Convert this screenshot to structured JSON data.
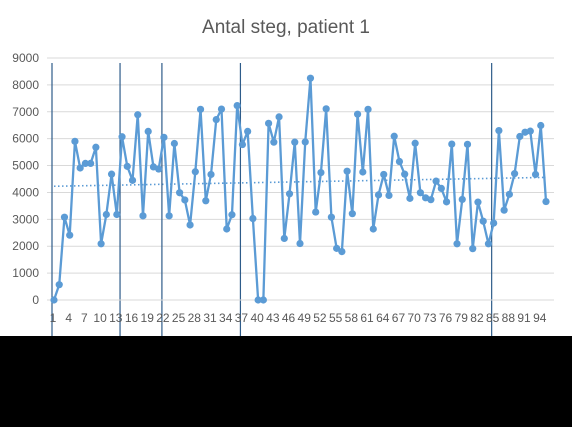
{
  "chart_data": {
    "type": "line",
    "title": "Antal steg, patient 1",
    "xlabel": "",
    "ylabel": "",
    "ylim": [
      0,
      9000
    ],
    "yticks": [
      0,
      1000,
      2000,
      3000,
      4000,
      5000,
      6000,
      7000,
      8000,
      9000
    ],
    "xtick_labels": [
      "1",
      "4",
      "7",
      "10",
      "13",
      "16",
      "19",
      "22",
      "25",
      "28",
      "31",
      "34",
      "37",
      "40",
      "43",
      "46",
      "49",
      "52",
      "55",
      "58",
      "61",
      "64",
      "67",
      "70",
      "73",
      "76",
      "79",
      "82",
      "85",
      "88",
      "91",
      "94"
    ],
    "grid": "horizontal",
    "legend": "none",
    "series_color": "#5B9BD5",
    "trendline": {
      "type": "linear",
      "start": 4230,
      "end": 4560,
      "style": "dotted"
    },
    "vertical_markers_at_day": [
      1,
      14,
      22,
      37,
      85
    ],
    "series": [
      {
        "values": [
          0,
          570,
          3080,
          2410,
          5900,
          4910,
          5080,
          5080,
          5680,
          2090,
          3180,
          4680,
          3180,
          6070,
          4970,
          4450,
          6890,
          3130,
          6270,
          4950,
          4870,
          6050,
          3130,
          5820,
          3990,
          3720,
          2790,
          4770,
          7090,
          3690,
          4670,
          6710,
          7100,
          2640,
          3170,
          7230,
          5780,
          6270,
          3030,
          0,
          0,
          6570,
          5870,
          6810,
          2290,
          3950,
          5870,
          2100,
          5880,
          8250,
          3270,
          4740,
          7110,
          3080,
          1920,
          1800,
          4790,
          3210,
          6910,
          4760,
          7090,
          2640,
          3910,
          4670,
          3890,
          6090,
          5150,
          4680,
          3780,
          5830,
          3990,
          3800,
          3730,
          4420,
          4150,
          3650,
          5800,
          2090,
          3740,
          5790,
          1910,
          3640,
          2930,
          2090,
          2860,
          6300,
          3340,
          3930,
          4700,
          6080,
          6240,
          6280,
          4670,
          6490,
          3660
        ]
      }
    ]
  }
}
